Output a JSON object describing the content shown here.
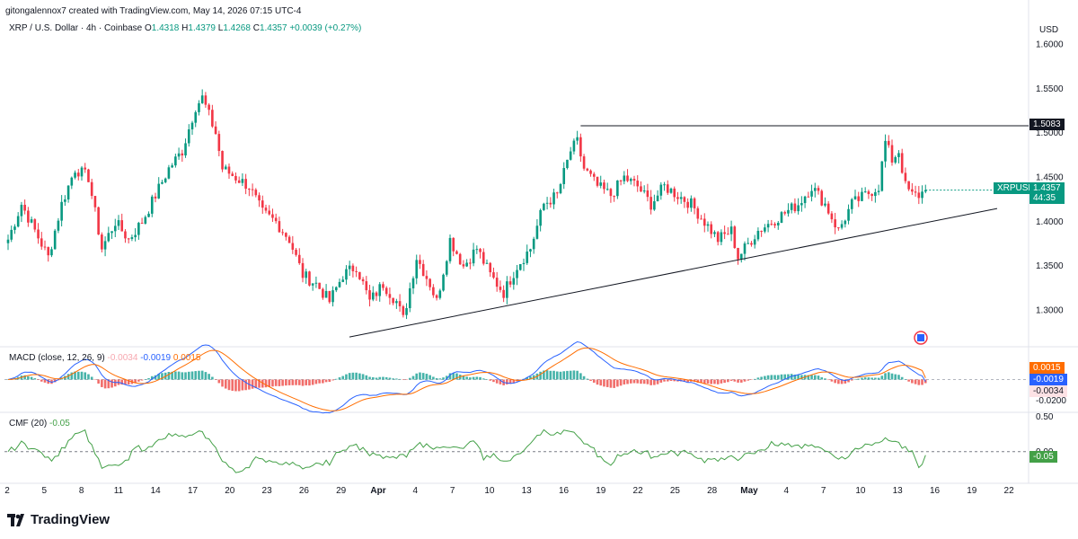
{
  "header": {
    "credit": "gitongalennox7 created with TradingView.com, May 14, 2026 07:15 UTC-4",
    "symbol": "XRP / U.S. Dollar · 4h · Coinbase",
    "o_label": "O",
    "o": "1.4318",
    "h_label": "H",
    "h": "1.4379",
    "l_label": "L",
    "l": "1.4268",
    "c_label": "C",
    "c": "1.4357",
    "change": "+0.0039 (+0.27%)"
  },
  "macd_legend": {
    "name": "MACD (close, 12, 26, 9)",
    "hist": "-0.0034",
    "macd": "-0.0019",
    "signal": "0.0015"
  },
  "cmf_legend": {
    "name": "CMF (20)",
    "value": "-0.05"
  },
  "labels": {
    "resistance": "1.5083",
    "symbol_tag": "XRPUSD",
    "price": "1.4357",
    "countdown": "44:35",
    "macd_signal": "0.0015",
    "macd_line": "-0.0019",
    "macd_hist": "-0.0034",
    "cmf": "-0.05"
  },
  "brand": "TradingView",
  "colors": {
    "up": "#089981",
    "down": "#f23645",
    "macd": "#2962ff",
    "signal": "#ff6d00",
    "cmf": "#43a047"
  },
  "chart_data": [
    {
      "type": "candlestick",
      "currency": "USD",
      "ylim": [
        1.26,
        1.63
      ],
      "yticks": [
        "1.6000",
        "1.5500",
        "1.5000",
        "1.4500",
        "1.4000",
        "1.3500",
        "1.3000"
      ],
      "xticks": [
        "2",
        "5",
        "8",
        "11",
        "14",
        "17",
        "20",
        "23",
        "26",
        "29",
        "Apr",
        "4",
        "7",
        "10",
        "13",
        "16",
        "19",
        "22",
        "25",
        "28",
        "May",
        "4",
        "7",
        "10",
        "13",
        "16",
        "19",
        "22"
      ],
      "close_path": [
        [
          0,
          1.38
        ],
        [
          4,
          1.42
        ],
        [
          8,
          1.39
        ],
        [
          12,
          1.36
        ],
        [
          16,
          1.42
        ],
        [
          20,
          1.46
        ],
        [
          24,
          1.45
        ],
        [
          28,
          1.37
        ],
        [
          32,
          1.4
        ],
        [
          36,
          1.38
        ],
        [
          40,
          1.4
        ],
        [
          44,
          1.43
        ],
        [
          48,
          1.46
        ],
        [
          52,
          1.48
        ],
        [
          56,
          1.53
        ],
        [
          58,
          1.54
        ],
        [
          60,
          1.52
        ],
        [
          62,
          1.5
        ],
        [
          64,
          1.46
        ],
        [
          68,
          1.45
        ],
        [
          72,
          1.44
        ],
        [
          76,
          1.41
        ],
        [
          80,
          1.4
        ],
        [
          84,
          1.38
        ],
        [
          88,
          1.34
        ],
        [
          92,
          1.33
        ],
        [
          96,
          1.31
        ],
        [
          100,
          1.34
        ],
        [
          104,
          1.35
        ],
        [
          108,
          1.31
        ],
        [
          112,
          1.33
        ],
        [
          116,
          1.31
        ],
        [
          118,
          1.29
        ],
        [
          122,
          1.36
        ],
        [
          126,
          1.33
        ],
        [
          128,
          1.31
        ],
        [
          132,
          1.38
        ],
        [
          136,
          1.35
        ],
        [
          140,
          1.37
        ],
        [
          144,
          1.34
        ],
        [
          148,
          1.32
        ],
        [
          152,
          1.35
        ],
        [
          156,
          1.37
        ],
        [
          160,
          1.42
        ],
        [
          164,
          1.43
        ],
        [
          168,
          1.48
        ],
        [
          170,
          1.49
        ],
        [
          172,
          1.46
        ],
        [
          176,
          1.44
        ],
        [
          180,
          1.43
        ],
        [
          184,
          1.45
        ],
        [
          188,
          1.44
        ],
        [
          192,
          1.42
        ],
        [
          196,
          1.44
        ],
        [
          200,
          1.43
        ],
        [
          204,
          1.42
        ],
        [
          208,
          1.4
        ],
        [
          212,
          1.38
        ],
        [
          216,
          1.39
        ],
        [
          218,
          1.36
        ],
        [
          220,
          1.37
        ],
        [
          224,
          1.39
        ],
        [
          228,
          1.4
        ],
        [
          232,
          1.41
        ],
        [
          236,
          1.42
        ],
        [
          240,
          1.44
        ],
        [
          244,
          1.42
        ],
        [
          248,
          1.39
        ],
        [
          252,
          1.42
        ],
        [
          256,
          1.43
        ],
        [
          260,
          1.44
        ],
        [
          262,
          1.49
        ],
        [
          264,
          1.47
        ],
        [
          266,
          1.48
        ],
        [
          268,
          1.44
        ],
        [
          270,
          1.43
        ],
        [
          272,
          1.43
        ],
        [
          274,
          1.4357
        ]
      ],
      "annotations": {
        "resistance": 1.5083,
        "support_start": 1.27,
        "support_end": 1.415
      }
    },
    {
      "type": "line",
      "title": "MACD (close, 12, 26, 9)",
      "yticks": [
        "0.0015",
        "-0.0019",
        "-0.0034",
        "-0.0200"
      ],
      "ylim": [
        -0.03,
        0.03
      ]
    },
    {
      "type": "line",
      "title": "CMF (20)",
      "yticks": [
        "0.50",
        "0.00",
        "-0.05"
      ],
      "ylim": [
        -0.35,
        0.55
      ]
    }
  ]
}
